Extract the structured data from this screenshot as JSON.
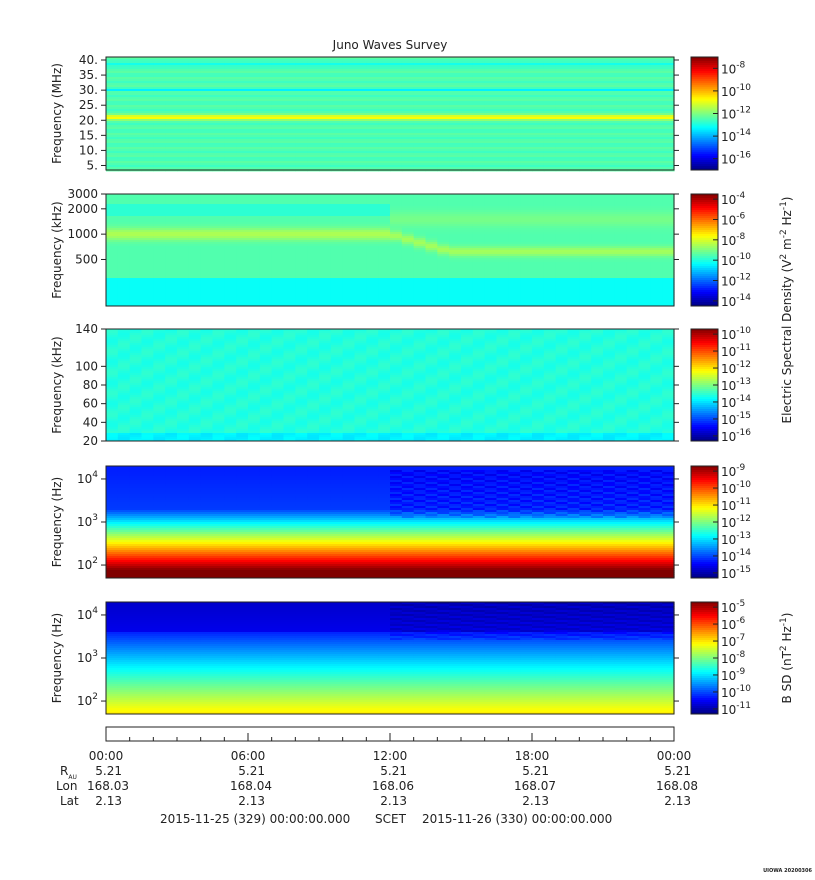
{
  "chart_data": {
    "type": "heatmap",
    "title": "Juno Waves Survey",
    "panels": [
      {
        "ylabel": "Frequency (MHz)",
        "yticks": [
          "40.",
          "35.",
          "30.",
          "25.",
          "20.",
          "15.",
          "10.",
          "5."
        ],
        "ytick_values": [
          40,
          35,
          30,
          25,
          20,
          15,
          10,
          5
        ],
        "ylim": [
          3.5,
          41
        ],
        "scale": "linear",
        "colorbar": {
          "exponents": [
            "-8",
            "-10",
            "-12",
            "-14",
            "-16"
          ],
          "range": [
            -17,
            -7
          ]
        },
        "features": [
          {
            "type": "band",
            "center": 21,
            "width": 1.2,
            "level": -10.5
          },
          {
            "type": "band",
            "center": 38.5,
            "width": 0.6,
            "level": -13.3
          },
          {
            "type": "band",
            "center": 30,
            "width": 0.5,
            "level": -13.3
          }
        ],
        "background_level": -12.5
      },
      {
        "ylabel": "Frequency (kHz)",
        "yticks": [
          "3000",
          "2000",
          "1000",
          "500"
        ],
        "ytick_values": [
          3000,
          2000,
          1000,
          500
        ],
        "ylim": [
          140,
          3000
        ],
        "scale": "log",
        "colorbar": {
          "exponents": [
            "-4",
            "-6",
            "-8",
            "-10",
            "-12",
            "-14"
          ],
          "range": [
            -14.5,
            -3.5
          ]
        },
        "background_level": -9.5
      },
      {
        "ylabel": "Frequency (kHz)",
        "yticks": [
          "140",
          "100",
          "80",
          "60",
          "40",
          "20"
        ],
        "ytick_values": [
          140,
          100,
          80,
          60,
          40,
          20
        ],
        "ylim": [
          20,
          140
        ],
        "scale": "linear",
        "colorbar": {
          "exponents": [
            "-10",
            "-11",
            "-12",
            "-13",
            "-14",
            "-15",
            "-16"
          ],
          "range": [
            -16.3,
            -9.7
          ]
        },
        "background_level": -13.6
      },
      {
        "ylabel": "Frequency (Hz)",
        "yticks": [
          "4",
          "3",
          "2"
        ],
        "ytick_values": [
          10000,
          1000,
          100
        ],
        "ylim": [
          50,
          20000
        ],
        "scale": "log",
        "colorbar": {
          "exponents": [
            "-9",
            "-10",
            "-11",
            "-12",
            "-13",
            "-14",
            "-15"
          ],
          "range": [
            -15.3,
            -8.7
          ]
        },
        "background_level": -13.5
      },
      {
        "ylabel": "Frequency (Hz)",
        "yticks": [
          "4",
          "3",
          "2"
        ],
        "ytick_values": [
          10000,
          1000,
          100
        ],
        "ylim": [
          50,
          20000
        ],
        "scale": "log",
        "colorbar": {
          "exponents": [
            "-5",
            "-6",
            "-7",
            "-8",
            "-9",
            "-10",
            "-11"
          ],
          "range": [
            -11.3,
            -4.7
          ]
        },
        "background_level": -8
      }
    ],
    "colorbar_labels": {
      "e_field": "Electric Spectral Density (V",
      "e_sup1": "2",
      "e_mid": " m",
      "e_sup2": "-2",
      "e_mid2": " Hz",
      "e_sup3": "-1",
      "e_end": ")",
      "b_field": "B SD (nT",
      "b_sup1": "2",
      "b_mid": " Hz",
      "b_sup2": "-1",
      "b_end": ")"
    },
    "time_ticks": [
      "00:00",
      "06:00",
      "12:00",
      "18:00",
      "00:00"
    ],
    "time_tick_hours": [
      0,
      6,
      12,
      18,
      24
    ],
    "ephemeris": {
      "labels": {
        "r": "R",
        "r_sub": "AU",
        "lon": "Lon",
        "lat": "Lat"
      },
      "r_au": [
        "5.21",
        "5.21",
        "5.21",
        "5.21",
        "5.21"
      ],
      "lon": [
        "168.03",
        "168.04",
        "168.06",
        "168.07",
        "168.08"
      ],
      "lat": [
        "2.13",
        "2.13",
        "2.13",
        "2.13",
        "2.13"
      ]
    },
    "footer": {
      "start": "2015-11-25 (329) 00:00:00.000",
      "scet": "SCET",
      "end": "2015-11-26 (330) 00:00:00.000"
    },
    "credit": "UIOWA 20200306"
  }
}
